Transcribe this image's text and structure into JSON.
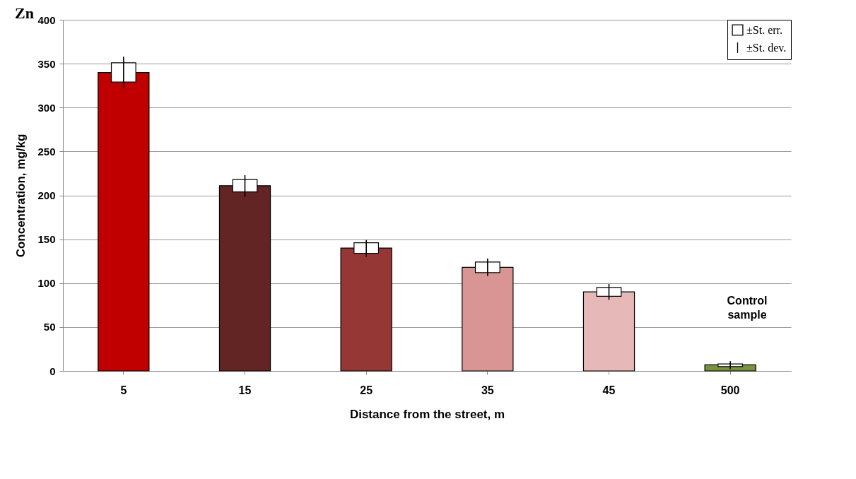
{
  "chart_data": {
    "type": "bar",
    "title": "Zn",
    "xlabel": "Distance from the street, m",
    "ylabel": "Concentration, mg/kg",
    "categories": [
      "5",
      "15",
      "25",
      "35",
      "45",
      "500"
    ],
    "series": [
      {
        "values": [
          340,
          211,
          140,
          118,
          90,
          7
        ],
        "colors": [
          "#c00000",
          "#632523",
          "#953735",
          "#d99594",
          "#e6b9b8",
          "#77933c"
        ]
      },
      {
        "type": "bar",
        "name": "±St. err.",
        "color": "#ffffff",
        "base": [
          329,
          204,
          134,
          112,
          85,
          5
        ],
        "values": [
          22,
          14,
          12,
          12,
          10,
          3
        ]
      },
      {
        "type": "bar",
        "name": "±St. dev.",
        "color": "#000000",
        "base": [
          322,
          198,
          130,
          108,
          81,
          2
        ],
        "values": [
          36,
          25,
          19,
          20,
          18,
          9
        ]
      }
    ],
    "ylim": [
      0,
      400
    ],
    "yticks": [
      0,
      50,
      100,
      150,
      200,
      250,
      300,
      350,
      400
    ],
    "grid": "y",
    "legend": "top right",
    "annotations": [
      "Control sample"
    ]
  }
}
